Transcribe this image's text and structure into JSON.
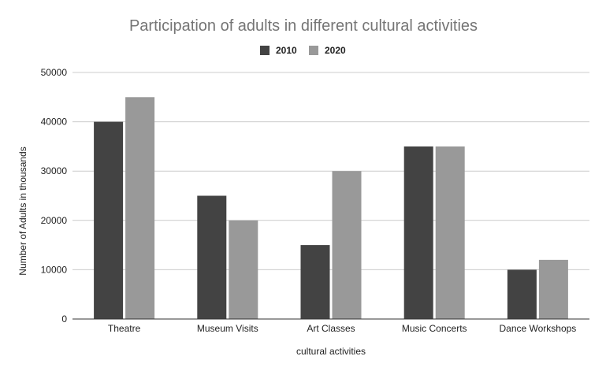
{
  "chart_data": {
    "type": "bar",
    "title": "Participation of adults in different cultural activities",
    "xlabel": "cultural activities",
    "ylabel": "Number of Adults in thousands",
    "categories": [
      "Theatre",
      "Museum Visits",
      "Art Classes",
      "Music Concerts",
      "Dance Workshops"
    ],
    "series": [
      {
        "name": "2010",
        "color": "#434343",
        "values": [
          40000,
          25000,
          15000,
          35000,
          10000
        ]
      },
      {
        "name": "2020",
        "color": "#999999",
        "values": [
          45000,
          20000,
          30000,
          35000,
          12000
        ]
      }
    ],
    "ylim": [
      0,
      50000
    ],
    "yticks": [
      "0",
      "10000",
      "20000",
      "30000",
      "40000",
      "50000"
    ],
    "grid": true,
    "legend_position": "top-center"
  }
}
